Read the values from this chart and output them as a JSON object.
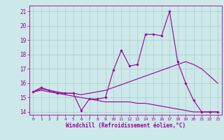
{
  "xlabel": "Windchill (Refroidissement éolien,°C)",
  "x": [
    0,
    1,
    2,
    3,
    4,
    5,
    6,
    7,
    8,
    9,
    10,
    11,
    12,
    13,
    14,
    15,
    16,
    17,
    18,
    19,
    20,
    21,
    22,
    23
  ],
  "line1": [
    15.4,
    15.7,
    15.5,
    15.3,
    15.3,
    15.3,
    14.1,
    14.9,
    14.9,
    15.0,
    16.9,
    18.3,
    17.2,
    17.3,
    19.4,
    19.4,
    19.3,
    21.0,
    17.5,
    16.0,
    14.8,
    14.0,
    14.0,
    14.0
  ],
  "line2": [
    15.4,
    15.6,
    15.5,
    15.4,
    15.3,
    15.3,
    15.2,
    15.3,
    15.4,
    15.5,
    15.7,
    15.9,
    16.1,
    16.3,
    16.5,
    16.7,
    16.9,
    17.1,
    17.3,
    17.5,
    17.3,
    17.0,
    16.5,
    16.0
  ],
  "line3": [
    15.4,
    15.5,
    15.4,
    15.3,
    15.2,
    15.1,
    15.0,
    14.9,
    14.8,
    14.7,
    14.7,
    14.7,
    14.7,
    14.6,
    14.6,
    14.5,
    14.4,
    14.3,
    14.2,
    14.1,
    14.0,
    14.0,
    14.0,
    14.0
  ],
  "line_color": "#990099",
  "bg_color": "#cce8e8",
  "grid_color": "#aacccc",
  "ylim": [
    13.8,
    21.4
  ],
  "xlim": [
    -0.5,
    23.5
  ],
  "yticks": [
    14,
    15,
    16,
    17,
    18,
    19,
    20,
    21
  ],
  "xticks": [
    0,
    1,
    2,
    3,
    4,
    5,
    6,
    7,
    8,
    9,
    10,
    11,
    12,
    13,
    14,
    15,
    16,
    17,
    18,
    19,
    20,
    21,
    22,
    23
  ]
}
